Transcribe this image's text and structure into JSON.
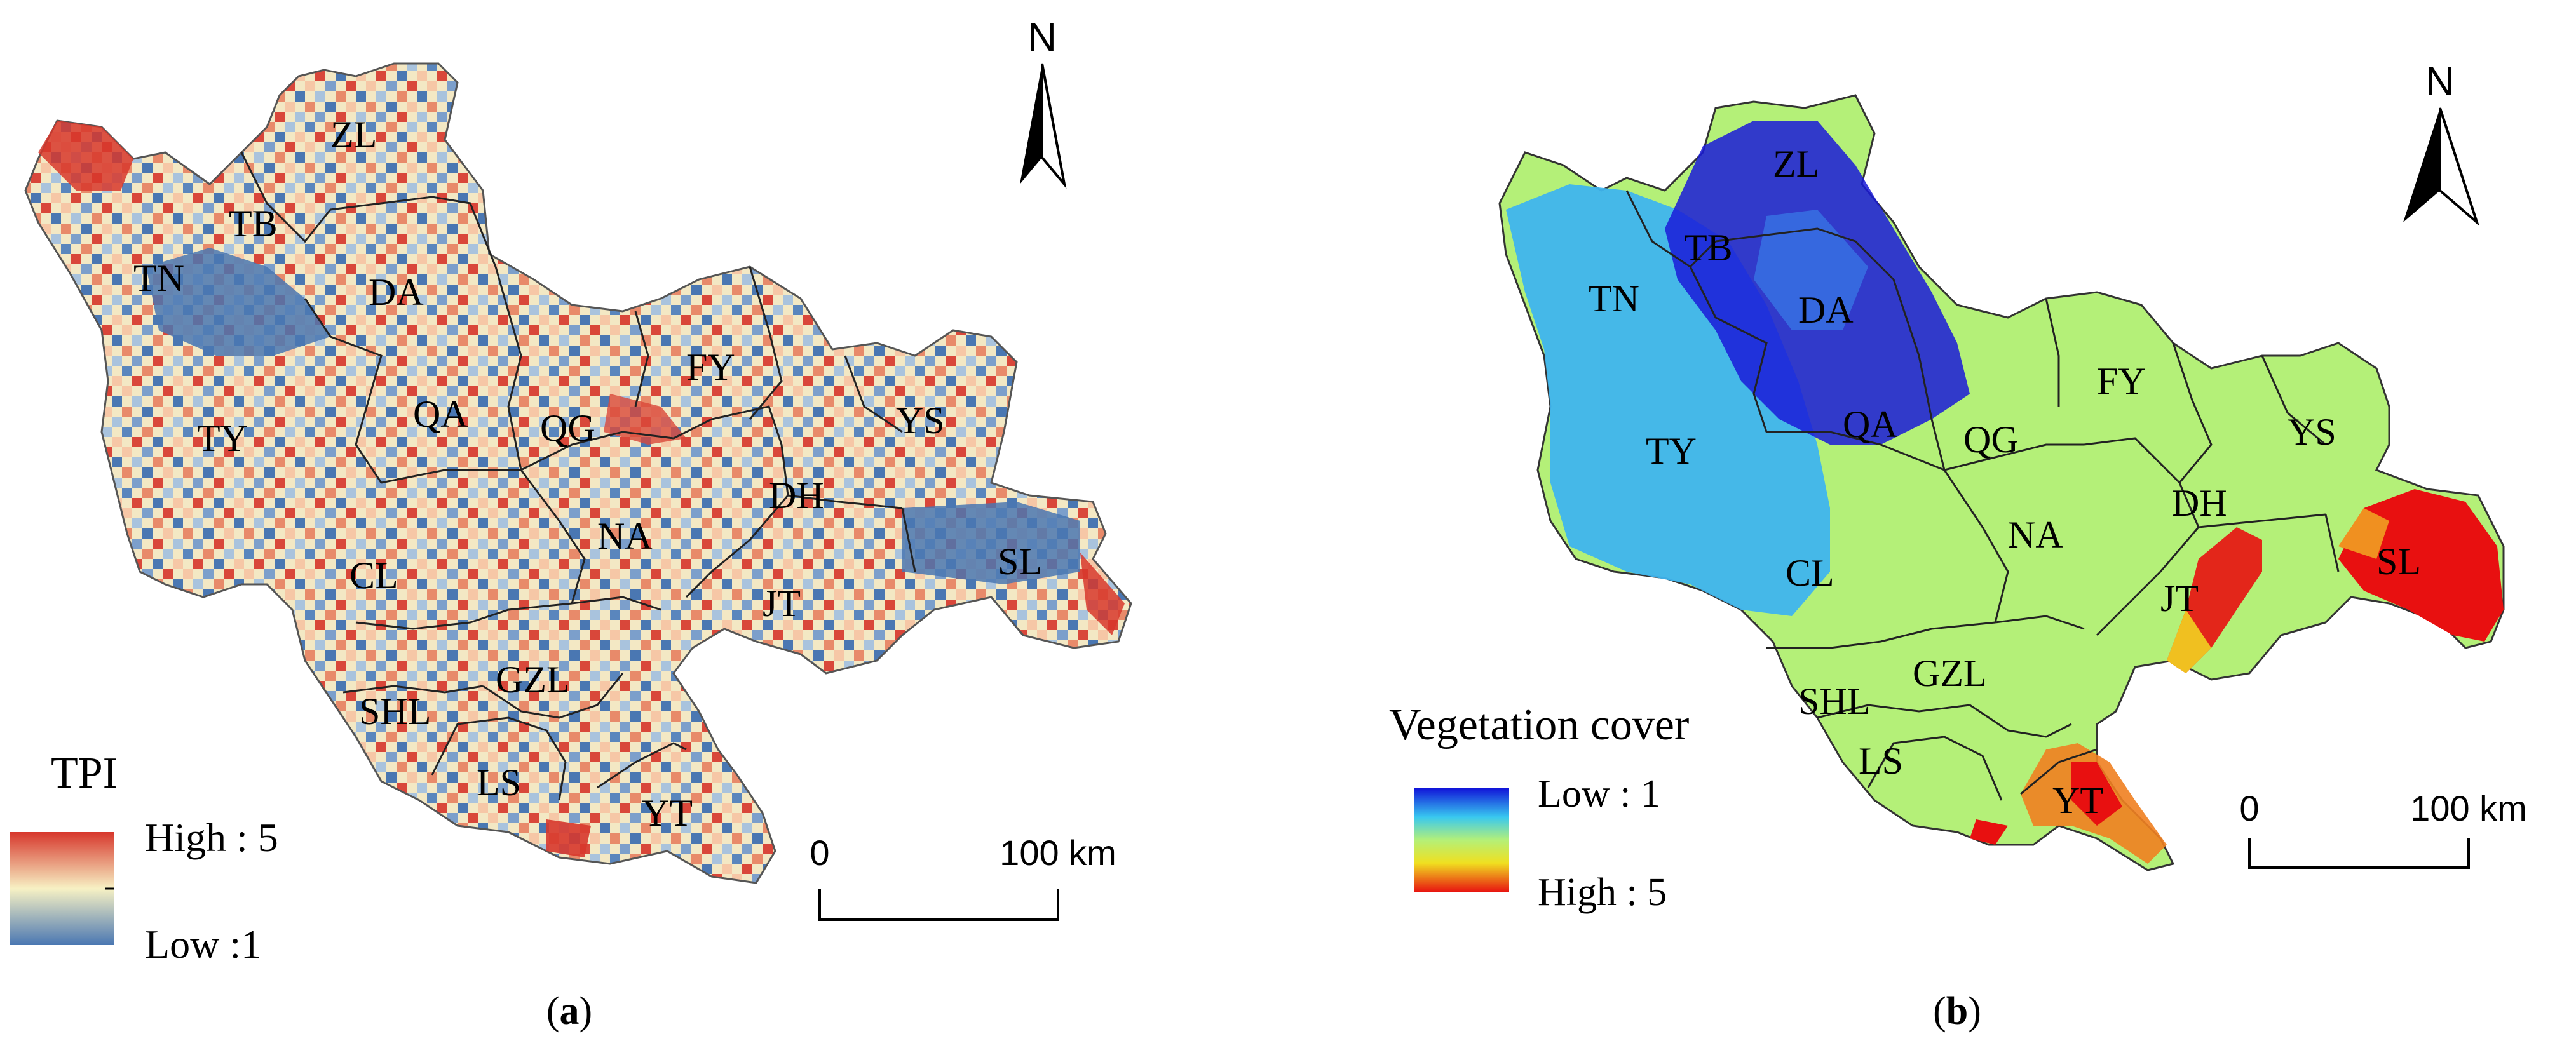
{
  "panels": [
    {
      "id": "a",
      "caption_open": "(",
      "caption_letter": "a",
      "caption_close": ")",
      "legend": {
        "title": "TPI",
        "high": "High : 5",
        "low": "Low :1",
        "colors": {
          "high": "#d7372c",
          "mid": "#f7f1c4",
          "low": "#4a77b2"
        }
      },
      "scale": {
        "start": "0",
        "end": "100 km"
      },
      "north": "N",
      "regions": [
        "ZL",
        "TB",
        "TN",
        "DA",
        "FY",
        "YS",
        "QA",
        "QG",
        "TY",
        "DH",
        "NA",
        "SL",
        "CL",
        "JT",
        "GZL",
        "SHL",
        "LS",
        "YT"
      ]
    },
    {
      "id": "b",
      "caption_open": "(",
      "caption_letter": "b",
      "caption_close": ")",
      "legend": {
        "title": "Vegetation cover",
        "low": "Low : 1",
        "high": "High : 5",
        "colors": {
          "low": "#1010d8",
          "low_mid": "#38c8f0",
          "mid": "#b4f078",
          "high_mid": "#f0e020",
          "high": "#e81010"
        }
      },
      "scale": {
        "start": "0",
        "end": "100 km"
      },
      "north": "N",
      "regions": [
        "ZL",
        "TB",
        "TN",
        "DA",
        "FY",
        "YS",
        "QA",
        "QG",
        "TY",
        "DH",
        "NA",
        "SL",
        "CL",
        "JT",
        "GZL",
        "SHL",
        "LS",
        "YT"
      ]
    }
  ]
}
